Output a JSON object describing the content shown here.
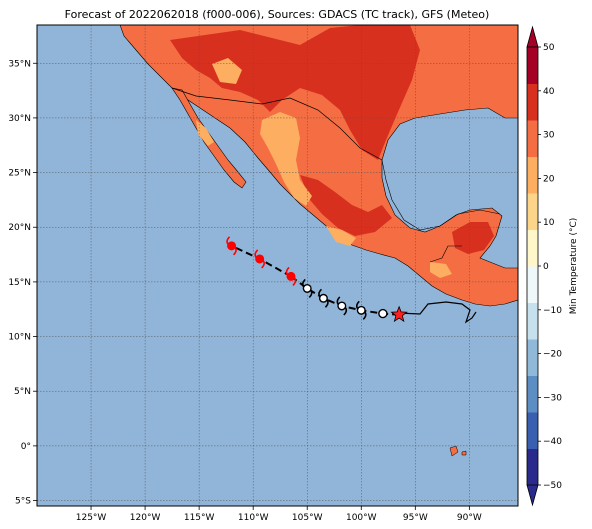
{
  "figure": {
    "title": "Forecast of 2022062018 (f000-006), Sources: GDACS (TC track), GFS (Meteo)"
  },
  "map": {
    "extent": {
      "lon_min": -130,
      "lon_max": -85.5,
      "lat_min": -5.5,
      "lat_max": 38.5
    },
    "x_ticks": [
      {
        "value": -125,
        "label": "125°W"
      },
      {
        "value": -120,
        "label": "120°W"
      },
      {
        "value": -115,
        "label": "115°W"
      },
      {
        "value": -110,
        "label": "110°W"
      },
      {
        "value": -105,
        "label": "105°W"
      },
      {
        "value": -100,
        "label": "100°W"
      },
      {
        "value": -95,
        "label": "95°W"
      },
      {
        "value": -90,
        "label": "90°W"
      }
    ],
    "y_ticks": [
      {
        "value": 35,
        "label": "35°N"
      },
      {
        "value": 30,
        "label": "30°N"
      },
      {
        "value": 25,
        "label": "25°N"
      },
      {
        "value": 20,
        "label": "20°N"
      },
      {
        "value": 15,
        "label": "15°N"
      },
      {
        "value": 10,
        "label": "10°N"
      },
      {
        "value": 5,
        "label": "5°N"
      },
      {
        "value": 0,
        "label": "0°"
      },
      {
        "value": -5,
        "label": "5°S"
      }
    ],
    "grid": true,
    "ocean_color": "#91b5d9",
    "land_colors": {
      "hot": "#d7301f",
      "warm": "#f46d43",
      "mild": "#fdae61"
    }
  },
  "track": {
    "observed": [
      {
        "lon": -96.5,
        "lat": 12.0,
        "marker": "current-position-star"
      },
      {
        "lon": -98.0,
        "lat": 12.1,
        "marker": "disturbance"
      },
      {
        "lon": -100.0,
        "lat": 12.4,
        "marker": "tropical-storm"
      },
      {
        "lon": -101.8,
        "lat": 12.8,
        "marker": "tropical-storm"
      },
      {
        "lon": -103.5,
        "lat": 13.5,
        "marker": "tropical-storm"
      },
      {
        "lon": -105.0,
        "lat": 14.4,
        "marker": "tropical-storm"
      }
    ],
    "forecast": [
      {
        "lon": -106.5,
        "lat": 15.5,
        "marker": "hurricane"
      },
      {
        "lon": -109.4,
        "lat": 17.1,
        "marker": "hurricane"
      },
      {
        "lon": -112.0,
        "lat": 18.3,
        "marker": "hurricane"
      }
    ],
    "forecast_color": "#ff0000",
    "observed_color": "#000000"
  },
  "colorbar": {
    "label": "Min Temperature (°C)",
    "ticks": [
      50,
      40,
      30,
      20,
      10,
      0,
      -10,
      -20,
      -30,
      -40,
      -50
    ],
    "min": -50,
    "max": 50,
    "colors": [
      "#2a2a8c",
      "#3a5fb0",
      "#5c8ec4",
      "#8fb8d9",
      "#c6e0ee",
      "#eef7f9",
      "#fff6c9",
      "#fdd589",
      "#fdae61",
      "#f46d43",
      "#d7301f",
      "#a50026"
    ]
  }
}
